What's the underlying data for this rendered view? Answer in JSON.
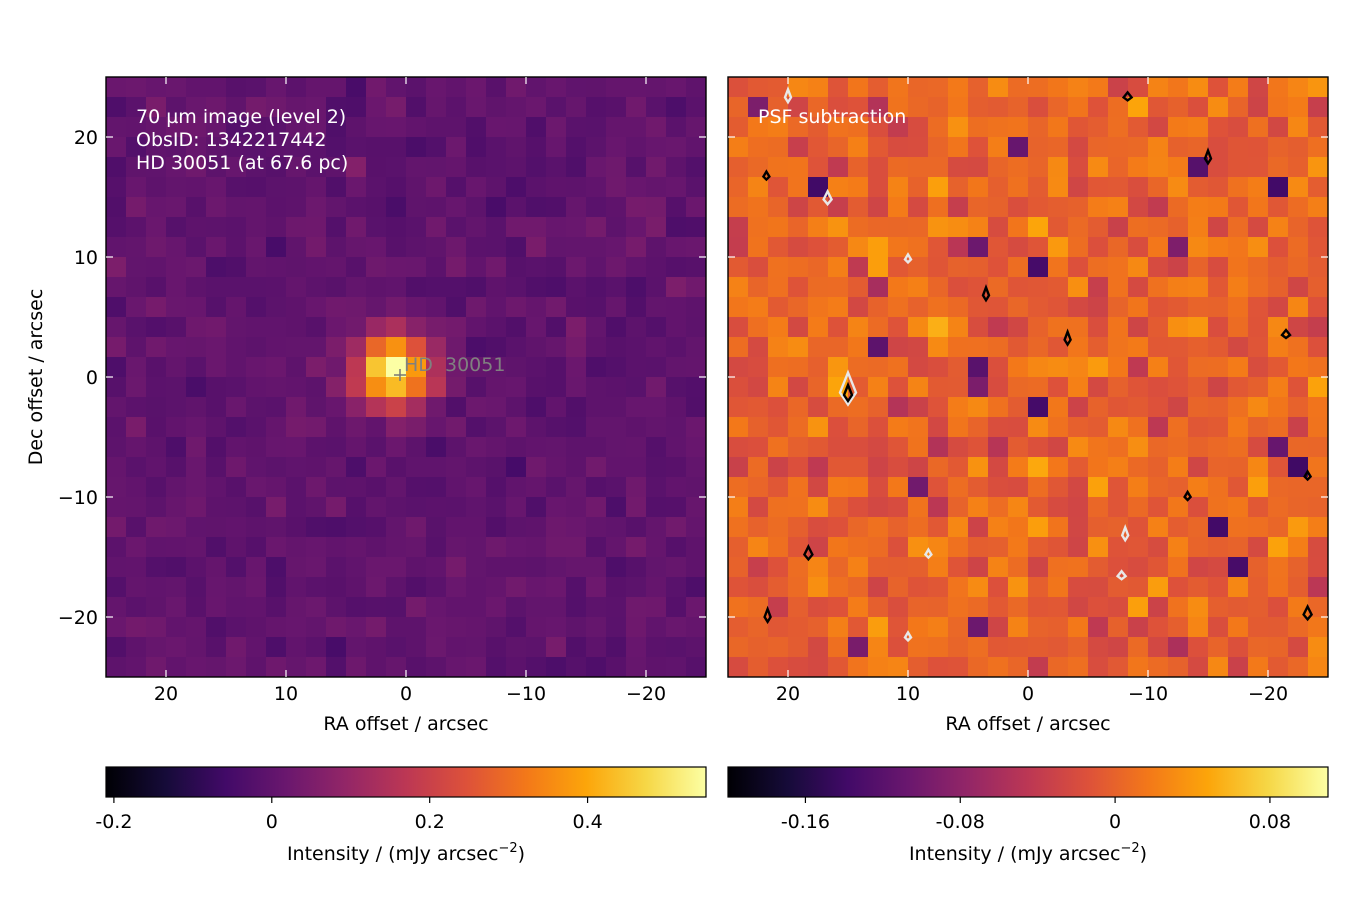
{
  "chart_data": [
    {
      "type": "heatmap",
      "panel": "left",
      "annotation_lines": [
        "70 µm image (level 2)",
        "ObsID: 1342217442",
        "HD 30051 (at 67.6 pc)"
      ],
      "star_label": "HD  30051",
      "star_position": [
        0.5,
        0.25
      ],
      "xlabel": "RA offset / arcsec",
      "ylabel": "Dec offset / arcsec",
      "xlim": [
        25,
        -25
      ],
      "ylim": [
        -25,
        25
      ],
      "xticks": [
        20,
        10,
        0,
        -10,
        -20
      ],
      "yticks": [
        20,
        10,
        0,
        -10,
        -20
      ],
      "grid": "30x30 pixels, about 1.6 arcsec per pixel",
      "colormap": "inferno",
      "colorbar": {
        "label": "Intensity / (mJy arcsec",
        "label_exponent": "−2",
        "label_suffix": ")",
        "range": [
          -0.21,
          0.55
        ],
        "ticks": [
          "-0.2",
          "0",
          "0.2",
          "0.4"
        ],
        "tick_values": [
          -0.2,
          0,
          0.2,
          0.4
        ]
      },
      "source_peak": {
        "ra_offset": 1,
        "dec_offset": 0.5,
        "peak_intensity": 0.55
      },
      "background_level": 0.0
    },
    {
      "type": "heatmap",
      "panel": "right",
      "annotation_lines": [
        "PSF subtraction"
      ],
      "xlabel": "RA offset / arcsec",
      "xlim": [
        25,
        -25
      ],
      "ylim": [
        -25,
        25
      ],
      "xticks": [
        20,
        10,
        0,
        -10,
        -20
      ],
      "yticks": [
        20,
        10,
        0,
        -10,
        -20
      ],
      "colormap": "inferno",
      "colorbar": {
        "label": "Intensity / (mJy arcsec",
        "label_exponent": "−2",
        "label_suffix": ")",
        "range": [
          -0.2,
          0.11
        ],
        "ticks": [
          "-0.16",
          "-0.08",
          "0",
          "0.08"
        ],
        "tick_values": [
          -0.16,
          -0.08,
          0,
          0.08
        ]
      },
      "contours": [
        {
          "ra": 15,
          "dec": -1.3,
          "color": "white"
        },
        {
          "ra": 15,
          "dec": -1.5,
          "color": "black"
        },
        {
          "ra": -3.3,
          "dec": 3.1,
          "color": "black"
        },
        {
          "ra": -21.5,
          "dec": 3.5,
          "color": "black"
        },
        {
          "ra": 3.5,
          "dec": 6.8,
          "color": "black"
        },
        {
          "ra": 10,
          "dec": 9.8,
          "color": "white"
        },
        {
          "ra": 16.7,
          "dec": 14.8,
          "color": "white"
        },
        {
          "ra": 21.8,
          "dec": 16.7,
          "color": "black"
        },
        {
          "ra": -15,
          "dec": 18.2,
          "color": "black"
        },
        {
          "ra": -8.3,
          "dec": 23.3,
          "color": "black"
        },
        {
          "ra": 20,
          "dec": 23.3,
          "color": "white"
        },
        {
          "ra": -13.3,
          "dec": -10,
          "color": "black"
        },
        {
          "ra": 18.3,
          "dec": -14.8,
          "color": "black"
        },
        {
          "ra": 8.3,
          "dec": -14.8,
          "color": "white"
        },
        {
          "ra": -8.1,
          "dec": -13.2,
          "color": "white"
        },
        {
          "ra": -7.8,
          "dec": -16.6,
          "color": "white"
        },
        {
          "ra": 21.7,
          "dec": -20,
          "color": "black"
        },
        {
          "ra": 10,
          "dec": -21.7,
          "color": "white"
        },
        {
          "ra": -23.3,
          "dec": -19.8,
          "color": "black"
        },
        {
          "ra": -23.3,
          "dec": -8.3,
          "color": "black"
        }
      ]
    }
  ]
}
